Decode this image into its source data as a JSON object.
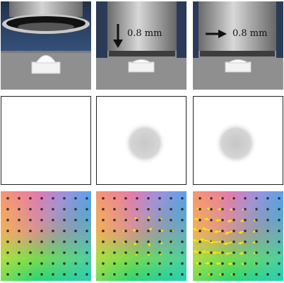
{
  "panels": {
    "down_label": "0.8 mm",
    "right_label": "0.8 mm"
  },
  "colors": {
    "arrow_yellow": "#ffe600",
    "dot": "#333333",
    "indenter_metal": "#a9a9a9",
    "table_gray": "#8e8e8e",
    "backdrop_blue": "#2b3b57"
  }
}
